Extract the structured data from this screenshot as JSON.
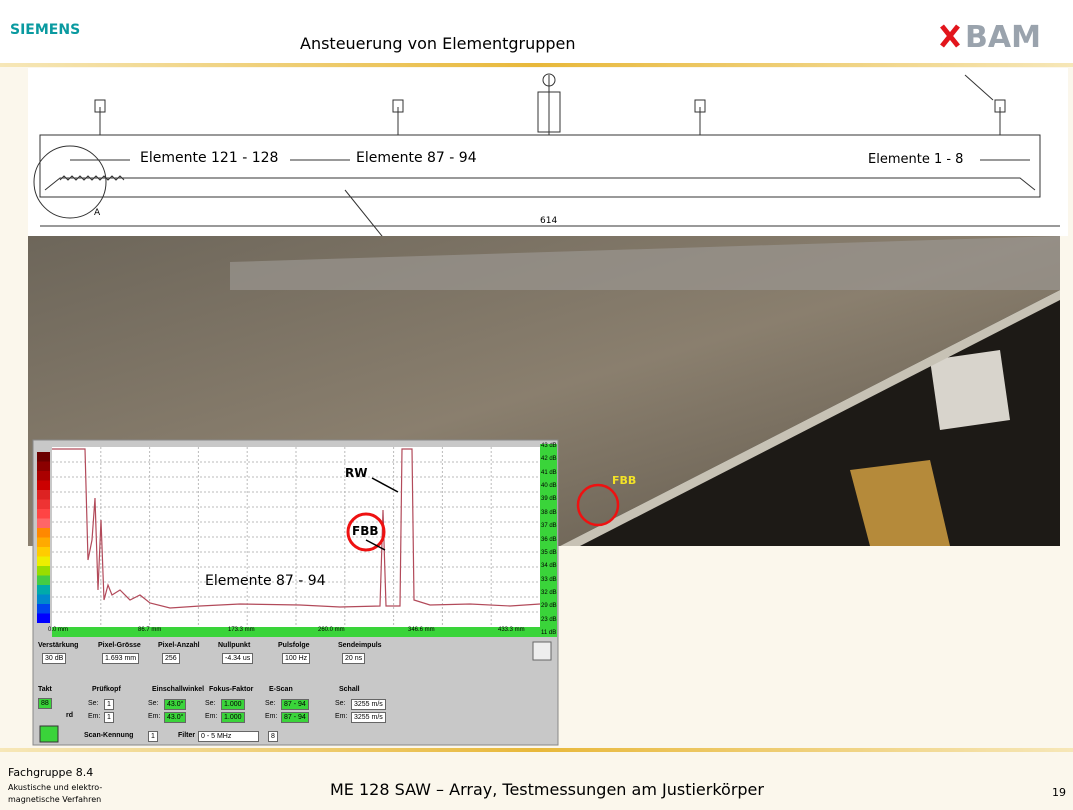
{
  "header": {
    "logo_left": "SIEMENS",
    "title": "Ansteuerung von Elementgruppen",
    "logo_right": "BAM"
  },
  "drawing": {
    "labels": [
      "Elemente 121 - 128",
      "Elemente 87 - 94",
      "Elemente 1 - 8"
    ],
    "detail": "A",
    "length": "614"
  },
  "photo": {
    "marker": "FBB"
  },
  "scan": {
    "y_labels": [
      "43 dB",
      "42 dB",
      "41 dB",
      "40 dB",
      "39 dB",
      "38 dB",
      "37 dB",
      "36 dB",
      "35 dB",
      "34 dB",
      "33 dB",
      "32 dB",
      "29 dB",
      "23 dB",
      "11 dB"
    ],
    "x_labels": [
      "0.0 mm",
      "86.7 mm",
      "173.3 mm",
      "260.0 mm",
      "346.6 mm",
      "433.3 mm"
    ],
    "annotations": {
      "rw": "RW",
      "fbb": "FBB",
      "elements": "Elemente 87 - 94"
    },
    "settings": [
      {
        "label": "Verstärkung",
        "value": "30 dB"
      },
      {
        "label": "Pixel-Grösse",
        "value": "1.693 mm"
      },
      {
        "label": "Pixel-Anzahl",
        "value": "256"
      },
      {
        "label": "Nullpunkt",
        "value": "-4.34 us"
      },
      {
        "label": "Pulsfolge",
        "value": "100 Hz"
      },
      {
        "label": "Sendeimpuls",
        "value": "20 ns"
      }
    ],
    "controls": {
      "takt_label": "Takt",
      "takt_value": "88",
      "rd": "rd",
      "se_prefix": "Se:",
      "em_prefix": "Em:",
      "groups": [
        {
          "label": "Prüfkopf",
          "se": "1",
          "em": "1"
        },
        {
          "label": "Einschallwinkel",
          "se": "43.0°",
          "em": "43.0°"
        },
        {
          "label": "Fokus-Faktor",
          "se": "1.000",
          "em": "1.000"
        },
        {
          "label": "E-Scan",
          "se": "87 - 94",
          "em": "87 - 94"
        },
        {
          "label": "Schall",
          "se": "3255 m/s",
          "em": "3255 m/s"
        }
      ],
      "scan_id_label": "Scan-Kennung",
      "scan_id": "1",
      "filter_label": "Filter",
      "filter": "0 - 5 MHz",
      "filter_extra": "8"
    }
  },
  "footer": {
    "group": "Fachgruppe 8.4",
    "dept_line1": "Akustische und elektro-",
    "dept_line2": "magnetische Verfahren",
    "title": "ME 128 SAW – Array, Testmessungen am Justierkörper",
    "page": "19"
  }
}
